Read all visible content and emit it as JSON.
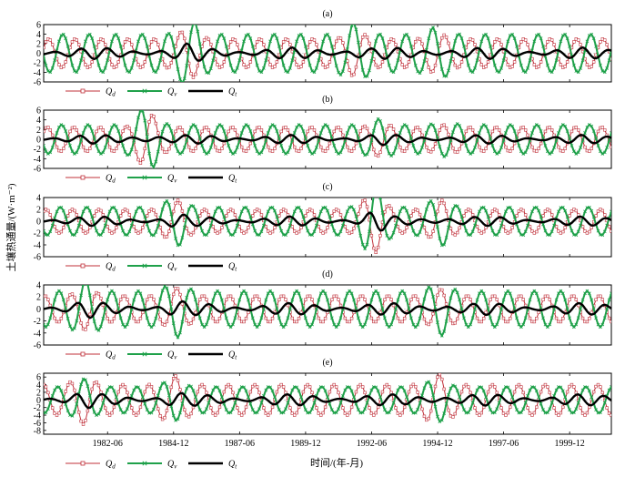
{
  "figure": {
    "ylabel": "土壤热通量/(W·m⁻²)",
    "xlabel": "时间/(年-月)",
    "x_tick_labels": [
      "1982-06",
      "1984-12",
      "1987-06",
      "1989-12",
      "1992-06",
      "1994-12",
      "1997-06",
      "1999-12"
    ]
  },
  "colors": {
    "Qd": "#c0303a",
    "Qv": "#1fa14a",
    "Qt": "#000000"
  },
  "chart_data": [
    {
      "type": "line",
      "title": "(a)",
      "ylim": [
        -6,
        6
      ],
      "yticks": [
        "-6",
        "-4",
        "-2",
        "0",
        "2",
        "4",
        "6"
      ],
      "legend": [
        "Q",
        "Q",
        "Q"
      ],
      "legend_sub": [
        "d",
        "v",
        "t"
      ],
      "amp": {
        "Qd": 3.0,
        "Qv": 4.0,
        "Qt": 1.2
      },
      "bursts": [
        [
          1985.5,
          1.8
        ],
        [
          1991.8,
          1.6
        ],
        [
          1994.9,
          1.4
        ]
      ]
    },
    {
      "type": "line",
      "title": "(b)",
      "ylim": [
        -6,
        6
      ],
      "yticks": [
        "-6",
        "-4",
        "-2",
        "0",
        "2",
        "4",
        "6"
      ],
      "legend": [
        "Q",
        "Q",
        "Q"
      ],
      "legend_sub": [
        "d",
        "v",
        "t"
      ],
      "amp": {
        "Qd": 2.5,
        "Qv": 3.0,
        "Qt": 0.9
      },
      "bursts": [
        [
          1983.9,
          2.3
        ],
        [
          1992.7,
          1.4
        ],
        [
          1995.2,
          1.2
        ]
      ]
    },
    {
      "type": "line",
      "title": "(c)",
      "ylim": [
        -6,
        4
      ],
      "yticks": [
        "-6",
        "-4",
        "-2",
        "0",
        "2",
        "4"
      ],
      "legend": [
        "Q",
        "Q",
        "Q"
      ],
      "legend_sub": [
        "d",
        "v",
        "t"
      ],
      "amp": {
        "Qd": 2.0,
        "Qv": 2.4,
        "Qt": 0.8
      },
      "bursts": [
        [
          1985.0,
          1.8
        ],
        [
          1992.5,
          2.7
        ],
        [
          1995.0,
          1.8
        ]
      ]
    },
    {
      "type": "line",
      "title": "(d)",
      "ylim": [
        -6,
        4
      ],
      "yticks": [
        "-6",
        "-4",
        "-2",
        "0",
        "2",
        "4"
      ],
      "legend": [
        "Q",
        "Q",
        "Q"
      ],
      "legend_sub": [
        "d",
        "v",
        "t"
      ],
      "amp": {
        "Qd": 2.2,
        "Qv": 3.0,
        "Qt": 1.0
      },
      "bursts": [
        [
          1981.6,
          1.6
        ],
        [
          1985.0,
          1.6
        ],
        [
          1995.0,
          1.5
        ]
      ]
    },
    {
      "type": "line",
      "title": "(e)",
      "ylim": [
        -9,
        7
      ],
      "yticks": [
        "-8",
        "-6",
        "-4",
        "-2",
        "0",
        "2",
        "4",
        "6"
      ],
      "legend": [
        "Q",
        "Q",
        "Q"
      ],
      "legend_sub": [
        "d",
        "v",
        "t"
      ],
      "amp": {
        "Qd": 4.0,
        "Qv": 3.5,
        "Qt": 1.5
      },
      "bursts": [
        [
          1981.5,
          1.6
        ],
        [
          1984.9,
          1.6
        ],
        [
          1994.9,
          1.7
        ]
      ]
    }
  ]
}
